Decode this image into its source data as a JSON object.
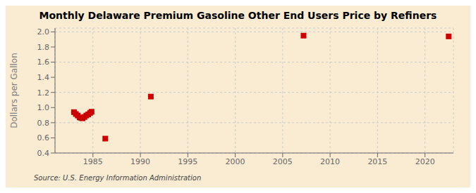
{
  "chart_data": {
    "type": "scatter",
    "title": "Monthly Delaware Premium Gasoline Other End Users Price by Refiners",
    "ylabel": "Dollars per Gallon",
    "annotations": [
      "Source: U.S. Energy Information Administration"
    ],
    "x": [
      1983.0,
      1983.2,
      1983.4,
      1983.6,
      1983.75,
      1983.9,
      1984.1,
      1984.3,
      1984.5,
      1984.7,
      1984.85,
      1986.3,
      1991.1,
      2007.2,
      2022.5
    ],
    "values": [
      0.94,
      0.915,
      0.895,
      0.87,
      0.865,
      0.858,
      0.875,
      0.895,
      0.91,
      0.93,
      0.945,
      0.59,
      1.145,
      1.95,
      1.94
    ],
    "color": "#cc0000",
    "marker": "square",
    "xlim": [
      1981,
      2023
    ],
    "ylim": [
      0.4,
      2.05
    ],
    "xticks": [
      1985,
      1990,
      1995,
      2000,
      2005,
      2010,
      2015,
      2020
    ],
    "yticks": [
      0.4,
      0.6,
      0.8,
      {
        "value": 1.0,
        "label": "1.0"
      },
      1.2,
      1.4,
      1.6,
      1.8,
      {
        "value": 2.0,
        "label": "2.0"
      }
    ],
    "grid": true
  }
}
